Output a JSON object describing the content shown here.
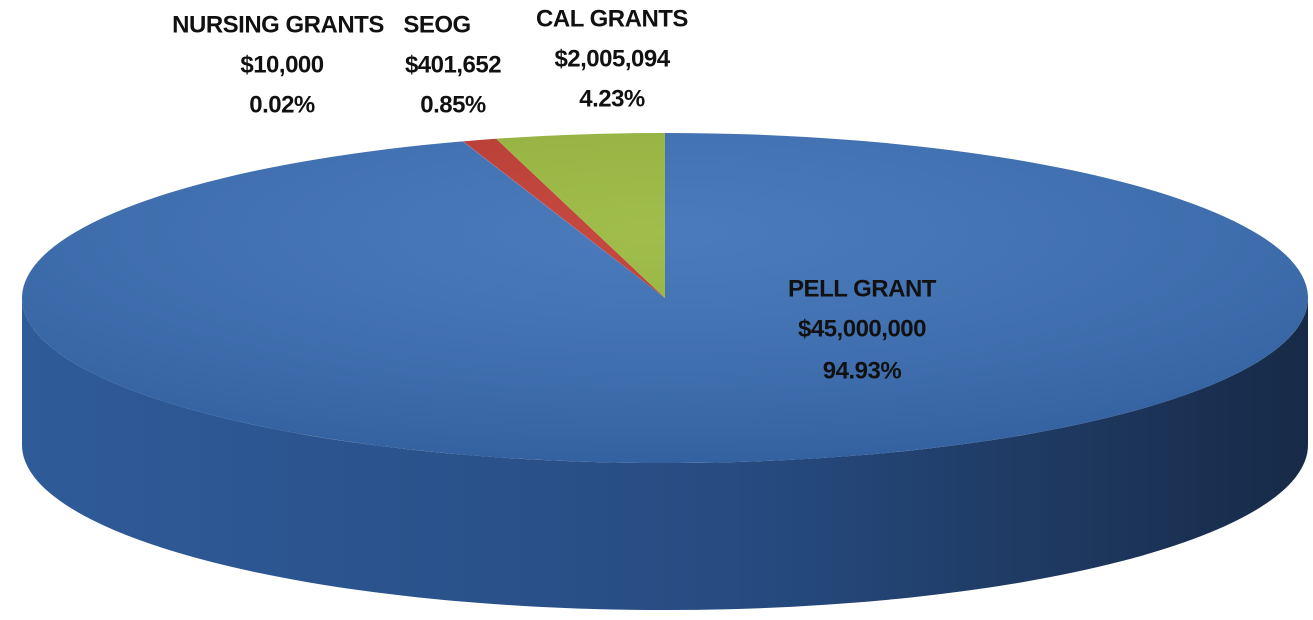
{
  "chart_data": {
    "type": "pie3d",
    "categories": [
      "PELL GRANT",
      "NURSING GRANTS",
      "SEOG",
      "CAL GRANTS"
    ],
    "values": [
      45000000,
      10000,
      401652,
      2005094
    ],
    "value_labels": [
      "$45,000,000",
      "$10,000",
      "$401,652",
      "$2,005,094"
    ],
    "percents": [
      94.93,
      0.02,
      0.85,
      4.23
    ],
    "percent_labels": [
      "94.93%",
      "0.02%",
      "0.85%",
      "4.23%"
    ],
    "colors": [
      "#3b6fb6",
      "#7e60a3",
      "#c0392f",
      "#98b83c"
    ]
  }
}
